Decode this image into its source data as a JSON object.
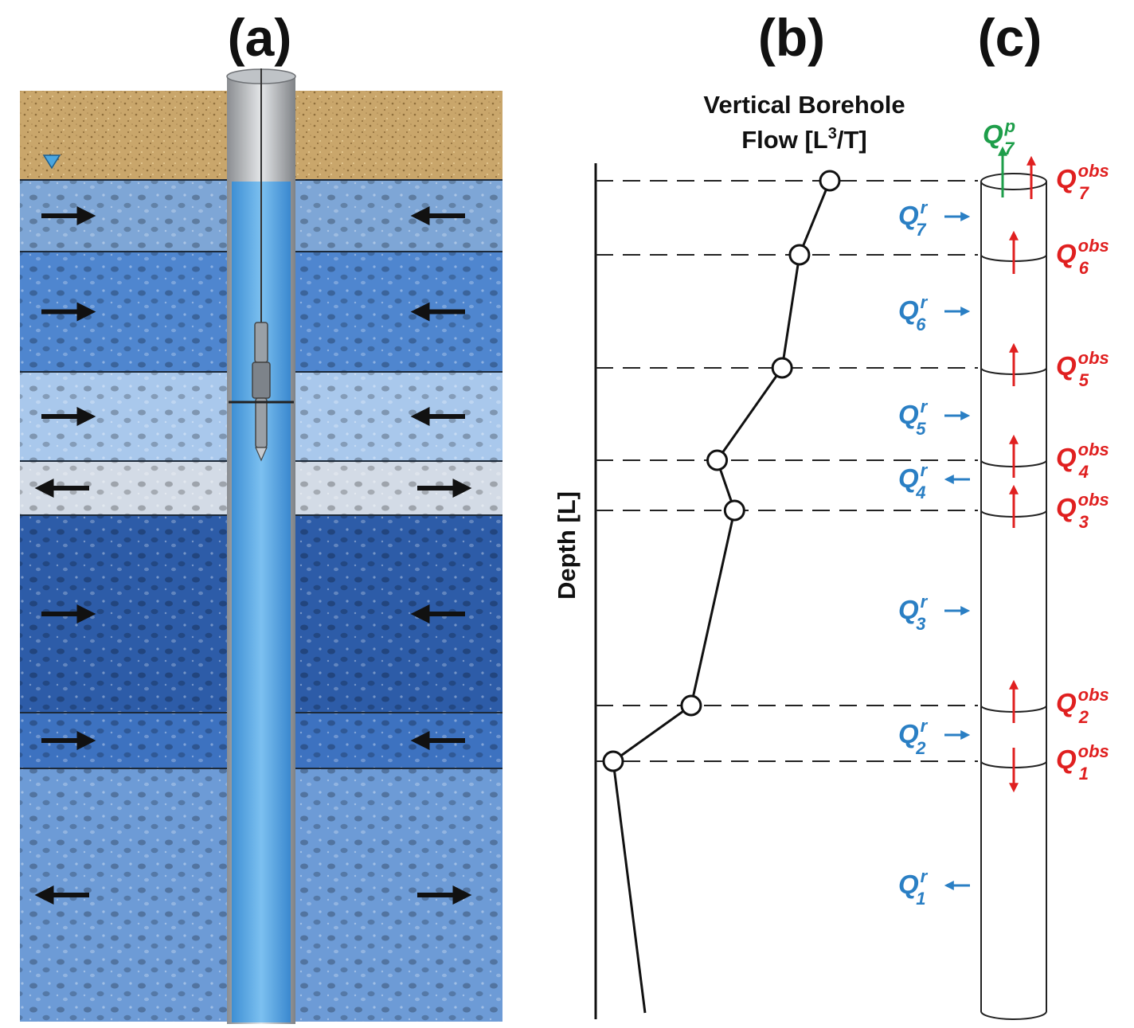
{
  "panels": {
    "a": "(a)",
    "b": "(b)",
    "c": "(c)"
  },
  "axis": {
    "top_title_line1": "Vertical Borehole",
    "top_title_line2_main": "Flow [L",
    "top_title_line2_exp": "3",
    "top_title_line2_end": "/T]",
    "left_title": "Depth [L]"
  },
  "symbols": {
    "q": "Q",
    "recharge_sup": "r",
    "observed_sup": "obs",
    "pumping_sup": "p"
  },
  "colors": {
    "recharge": "#2a7fc4",
    "observed": "#e02020",
    "pumping": "#1e9e4a",
    "soil": "#c9a66b",
    "water": "#5aa9e6"
  },
  "layers": [
    {
      "flow": "in",
      "shade": "#7ea6d6"
    },
    {
      "flow": "in",
      "shade": "#4f86cf"
    },
    {
      "flow": "in",
      "shade": "#a9c8ec"
    },
    {
      "flow": "out",
      "shade": "#d3dbe6"
    },
    {
      "flow": "in",
      "shade": "#2d5ca8"
    },
    {
      "flow": "in",
      "shade": "#3d72c0"
    },
    {
      "flow": "out",
      "shade": "#6d9bd6"
    }
  ],
  "profile_points": [
    {
      "station": "7",
      "relative_flow": 1.0
    },
    {
      "station": "6",
      "relative_flow": 0.86
    },
    {
      "station": "5",
      "relative_flow": 0.78
    },
    {
      "station": "4",
      "relative_flow": 0.48
    },
    {
      "station": "3",
      "relative_flow": 0.56
    },
    {
      "station": "2",
      "relative_flow": 0.36
    },
    {
      "station": "1",
      "relative_flow": 0.0
    }
  ],
  "recharge_labels": [
    {
      "sub": "7",
      "direction": "in"
    },
    {
      "sub": "6",
      "direction": "in"
    },
    {
      "sub": "5",
      "direction": "in"
    },
    {
      "sub": "4",
      "direction": "out"
    },
    {
      "sub": "3",
      "direction": "in"
    },
    {
      "sub": "2",
      "direction": "in"
    },
    {
      "sub": "1",
      "direction": "out"
    }
  ],
  "observed_labels": [
    {
      "sub": "7",
      "direction": "up"
    },
    {
      "sub": "6",
      "direction": "up"
    },
    {
      "sub": "5",
      "direction": "up"
    },
    {
      "sub": "4",
      "direction": "up"
    },
    {
      "sub": "3",
      "direction": "up"
    },
    {
      "sub": "2",
      "direction": "up"
    },
    {
      "sub": "1",
      "direction": "down"
    }
  ],
  "pumping_label": {
    "sub": "7",
    "direction": "up"
  }
}
